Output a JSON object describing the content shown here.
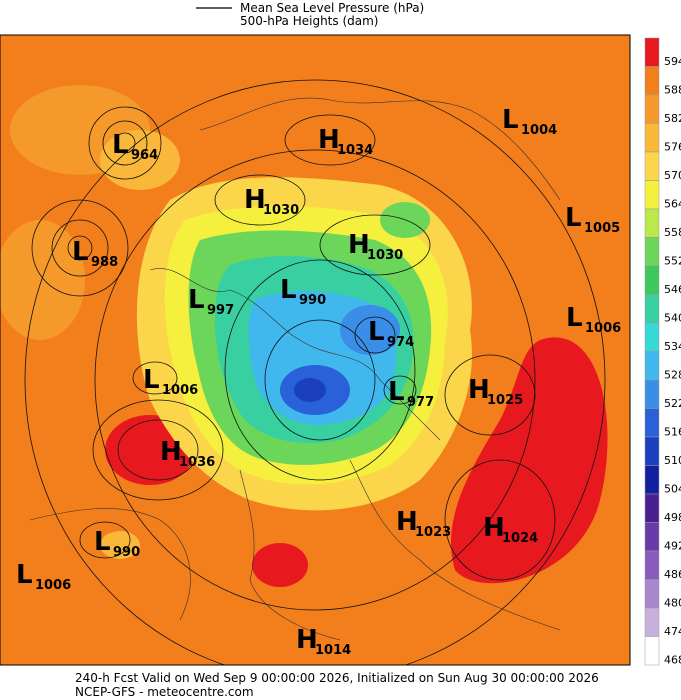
{
  "legend": {
    "pressure": "Mean Sea Level Pressure (hPa)",
    "heights": "500-hPa Heights (dam)"
  },
  "systems": [
    {
      "letter": "L",
      "value": 964
    },
    {
      "letter": "H",
      "value": 1034
    },
    {
      "letter": "L",
      "value": 1004
    },
    {
      "letter": "H",
      "value": 1030
    },
    {
      "letter": "L",
      "value": 1005
    },
    {
      "letter": "H",
      "value": 1030
    },
    {
      "letter": "L",
      "value": 988
    },
    {
      "letter": "L",
      "value": 990
    },
    {
      "letter": "L",
      "value": 997
    },
    {
      "letter": "L",
      "value": 1006
    },
    {
      "letter": "L",
      "value": 974
    },
    {
      "letter": "L",
      "value": 1006
    },
    {
      "letter": "L",
      "value": 977
    },
    {
      "letter": "H",
      "value": 1025
    },
    {
      "letter": "H",
      "value": 1036
    },
    {
      "letter": "H",
      "value": 1023
    },
    {
      "letter": "H",
      "value": 1024
    },
    {
      "letter": "L",
      "value": 990
    },
    {
      "letter": "L",
      "value": 1006
    },
    {
      "letter": "H",
      "value": 1014
    }
  ],
  "colorbar": [
    {
      "value": 594,
      "color": "#e8191e"
    },
    {
      "value": 588,
      "color": "#f27e1c"
    },
    {
      "value": 582,
      "color": "#f59a2a"
    },
    {
      "value": 576,
      "color": "#f9b83a"
    },
    {
      "value": 570,
      "color": "#fbd54a"
    },
    {
      "value": 564,
      "color": "#f5f03d"
    },
    {
      "value": 558,
      "color": "#bde84a"
    },
    {
      "value": 552,
      "color": "#6cd65a"
    },
    {
      "value": 546,
      "color": "#3cc85a"
    },
    {
      "value": 540,
      "color": "#38d0a0"
    },
    {
      "value": 534,
      "color": "#36d8d8"
    },
    {
      "value": 528,
      "color": "#40b8ee"
    },
    {
      "value": 522,
      "color": "#3a8ee8"
    },
    {
      "value": 516,
      "color": "#2a60d8"
    },
    {
      "value": 510,
      "color": "#1a40c0"
    },
    {
      "value": 504,
      "color": "#1020a0"
    },
    {
      "value": 498,
      "color": "#4a2090"
    },
    {
      "value": 492,
      "color": "#6a3aa8"
    },
    {
      "value": 486,
      "color": "#8a5abc"
    },
    {
      "value": 480,
      "color": "#a888cc"
    },
    {
      "value": 474,
      "color": "#c8b0dc"
    },
    {
      "value": 468,
      "color": "#ffffff"
    }
  ],
  "footer": {
    "forecast": "240-h Fcst Valid on Wed Sep  9 00:00:00 2026, Initialized on Sun Aug 30 00:00:00 2026",
    "source": "NCEP-GFS  - meteocentre.com"
  }
}
